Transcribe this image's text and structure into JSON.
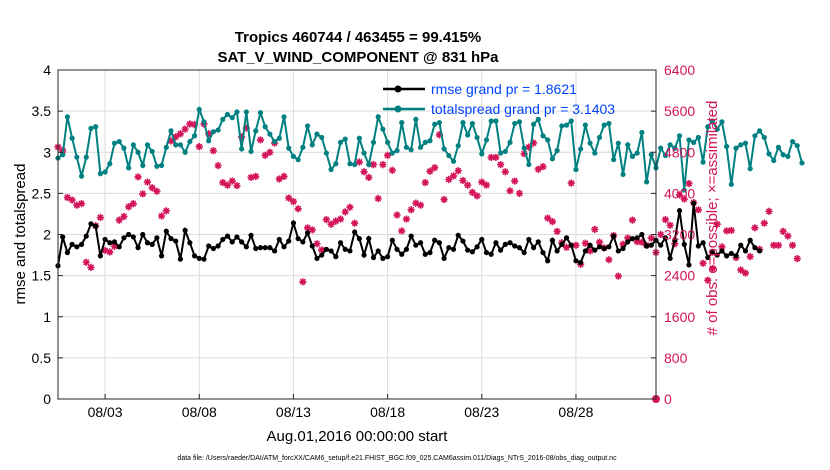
{
  "chart_data": {
    "type": "line",
    "title_line1": "Tropics 460744 / 463455 = 99.415%",
    "title_line2": "SAT_V_WIND_COMPONENT @ 831 hPa",
    "xlabel": "Aug.01,2016 00:00:00 start",
    "ylabel_left": "rmse and totalspread",
    "ylabel_right": "# of obs: o=possible; ×=assimilated",
    "footer": "data file: /Users/raeder/DAI/ATM_forcXX/CAM6_setup/f.e21.FHIST_BGC.f09_025.CAM6assim.011/Diags_NTrS_2016-08/obs_diag_output.nc",
    "x_range_days": [
      0.5,
      32.25
    ],
    "ylim_left": [
      0,
      4
    ],
    "ylim_right": [
      0,
      6400
    ],
    "grid": true,
    "x_ticks": [
      {
        "day": 3,
        "label": "08/03"
      },
      {
        "day": 8,
        "label": "08/08"
      },
      {
        "day": 13,
        "label": "08/13"
      },
      {
        "day": 18,
        "label": "08/18"
      },
      {
        "day": 23,
        "label": "08/23"
      },
      {
        "day": 28,
        "label": "08/28"
      }
    ],
    "y_ticks_left": [
      "0",
      "0.5",
      "1",
      "1.5",
      "2",
      "2.5",
      "3",
      "3.5",
      "4"
    ],
    "y_ticks_right": [
      "0",
      "800",
      "1600",
      "2400",
      "3200",
      "4000",
      "4800",
      "5600",
      "6400"
    ],
    "legend": [
      {
        "name": "rmse grand pr = 1.8621",
        "color": "#000000"
      },
      {
        "name": "totalspread grand pr = 3.1403",
        "color": "#008080"
      }
    ],
    "colors": {
      "rmse": "#000000",
      "spread": "#008080",
      "obs": "#d4145a",
      "text_blue": "#0044ff",
      "axis_right": "#d4145a"
    },
    "x_start_day": 0.5,
    "x_step_days": 0.25,
    "series": [
      {
        "name": "rmse",
        "axis": "left",
        "values": [
          1.62,
          1.97,
          1.78,
          1.88,
          1.85,
          1.88,
          1.98,
          2.13,
          2.1,
          1.74,
          1.94,
          1.9,
          1.91,
          1.85,
          1.96,
          2.0,
          1.97,
          1.84,
          2.0,
          1.9,
          1.88,
          1.96,
          1.74,
          2.04,
          1.95,
          1.92,
          1.7,
          2.05,
          1.9,
          1.74,
          1.71,
          1.7,
          1.86,
          1.83,
          1.86,
          1.94,
          1.98,
          1.91,
          1.97,
          1.91,
          1.85,
          1.99,
          1.83,
          1.84,
          1.84,
          1.84,
          1.8,
          1.94,
          1.85,
          1.92,
          2.14,
          1.95,
          1.91,
          2.02,
          1.86,
          1.71,
          1.75,
          1.82,
          1.8,
          1.73,
          1.9,
          1.82,
          1.8,
          2.03,
          1.95,
          1.75,
          1.95,
          1.72,
          1.8,
          1.71,
          1.73,
          1.93,
          1.82,
          1.76,
          1.82,
          1.98,
          1.87,
          1.9,
          1.76,
          1.78,
          1.93,
          1.9,
          1.71,
          1.84,
          1.82,
          1.99,
          1.92,
          1.81,
          1.79,
          1.85,
          1.94,
          1.78,
          1.76,
          1.9,
          1.81,
          1.88,
          1.9,
          1.86,
          1.84,
          1.78,
          1.94,
          1.84,
          1.91,
          1.78,
          1.68,
          1.93,
          1.8,
          1.88,
          1.96,
          1.87,
          1.68,
          1.66,
          1.8,
          1.87,
          1.81,
          1.85,
          1.83,
          1.85,
          1.98,
          1.8,
          1.83,
          1.91,
          1.95,
          1.96,
          2.0,
          1.86,
          1.87,
          1.93,
          1.87,
          1.96,
          1.71,
          1.93,
          2.29,
          1.88,
          1.63,
          2.38,
          1.86,
          1.9,
          1.72,
          1.78,
          1.75,
          1.8,
          1.74,
          1.77,
          1.74,
          1.87,
          1.8,
          1.93,
          1.84,
          1.8
        ]
      },
      {
        "name": "totalspread",
        "axis": "left",
        "values": [
          2.93,
          2.97,
          3.43,
          3.17,
          2.94,
          2.71,
          2.94,
          3.29,
          3.31,
          2.74,
          2.76,
          2.86,
          3.11,
          3.13,
          3.05,
          2.81,
          3.09,
          3.0,
          2.84,
          3.09,
          3.01,
          2.83,
          2.84,
          3.06,
          3.26,
          3.09,
          3.09,
          3.0,
          3.13,
          3.2,
          3.52,
          3.37,
          3.14,
          3.25,
          3.27,
          3.4,
          3.46,
          3.42,
          3.49,
          3.04,
          3.49,
          3.01,
          3.26,
          3.48,
          3.31,
          3.22,
          3.13,
          3.17,
          3.43,
          3.05,
          2.95,
          2.91,
          3.06,
          3.32,
          3.09,
          3.22,
          3.18,
          2.99,
          2.79,
          2.86,
          3.12,
          3.16,
          2.86,
          2.85,
          3.17,
          2.99,
          2.85,
          3.12,
          3.43,
          3.28,
          3.12,
          2.99,
          3.02,
          3.36,
          3.06,
          3.03,
          3.4,
          3.06,
          3.12,
          3.14,
          3.34,
          3.36,
          3.04,
          2.96,
          2.89,
          3.08,
          3.36,
          3.21,
          3.35,
          3.18,
          2.98,
          3.15,
          3.38,
          3.38,
          2.99,
          3.01,
          3.12,
          3.35,
          3.37,
          3.05,
          2.85,
          3.34,
          3.4,
          3.2,
          3.15,
          2.92,
          3.02,
          3.32,
          3.33,
          3.38,
          2.79,
          3.04,
          3.33,
          3.11,
          2.99,
          3.18,
          3.33,
          3.35,
          2.91,
          3.11,
          2.73,
          3.09,
          2.95,
          2.99,
          3.24,
          2.64,
          2.97,
          2.81,
          3.05,
          2.96,
          3.09,
          3.05,
          3.2,
          2.54,
          3.15,
          3.12,
          3.18,
          2.88,
          3.31,
          3.38,
          3.28,
          3.37,
          3.07,
          2.61,
          3.05,
          3.09,
          3.11,
          2.8,
          3.2,
          3.26,
          3.18,
          2.98,
          2.9,
          3.06,
          2.97,
          2.95,
          3.13,
          3.08,
          2.87
        ]
      },
      {
        "name": "obs_assimilated",
        "axis": "right",
        "values": [
          4900,
          4830,
          3920,
          3870,
          3770,
          3800,
          2660,
          2560,
          3370,
          3530,
          2890,
          2860,
          2970,
          3480,
          3550,
          3740,
          3800,
          4320,
          3990,
          4220,
          4110,
          4040,
          3560,
          3660,
          5020,
          5100,
          5160,
          5250,
          5350,
          5340,
          4910,
          5350,
          5160,
          4830,
          4540,
          4210,
          4160,
          4240,
          4150,
          5100,
          5270,
          4310,
          4330,
          5040,
          4740,
          4800,
          4980,
          4280,
          4330,
          3910,
          3840,
          3700,
          2280,
          3330,
          3290,
          3020,
          2900,
          3490,
          3400,
          3460,
          3500,
          3640,
          3730,
          3420,
          4610,
          4420,
          4310,
          4560,
          3900,
          4560,
          4740,
          4450,
          3580,
          3270,
          3500,
          3680,
          3810,
          3770,
          4210,
          4430,
          4500,
          5140,
          3880,
          4270,
          4340,
          4440,
          4250,
          4160,
          4020,
          3950,
          4220,
          4160,
          4700,
          4700,
          4560,
          4420,
          4050,
          4240,
          4000,
          4770,
          4900,
          4980,
          4470,
          4520,
          3520,
          3450,
          3260,
          3040,
          2950,
          4200,
          2990,
          2620,
          3030,
          2880,
          3300,
          3050,
          2940,
          2710,
          3180,
          2390,
          3010,
          3130,
          3480,
          3060,
          3050,
          2990,
          3130,
          2850,
          3200,
          3490,
          3380,
          3020,
          3970,
          3890,
          4190,
          3820,
          3680,
          2640,
          2310,
          2540,
          3400,
          2960,
          3270,
          3280,
          2750,
          2510,
          2450,
          2770,
          3330,
          2910,
          3420,
          3650,
          2990,
          2990,
          3260,
          3170,
          2990,
          2730
        ]
      },
      {
        "name": "obs_possible_last",
        "axis": "right",
        "points": [
          {
            "day": 32.25,
            "value": 0
          }
        ]
      }
    ]
  }
}
